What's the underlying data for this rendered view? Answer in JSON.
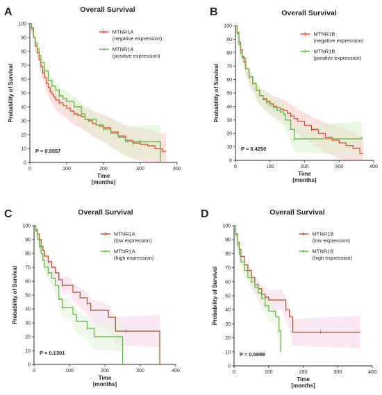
{
  "chart_data": [
    {
      "panel": "A",
      "type": "line",
      "title": "Overall Survival",
      "xlabel": [
        "Time",
        "[months]"
      ],
      "ylabel": "Probability of Survival",
      "xlim": [
        0,
        400
      ],
      "ylim": [
        0,
        100
      ],
      "xticks": [
        0,
        100,
        200,
        300,
        400
      ],
      "yticks": [
        0,
        10,
        20,
        30,
        40,
        50,
        60,
        70,
        80,
        90,
        100
      ],
      "legend_position": "top-right",
      "p_value": "P = 0.5557",
      "series": [
        {
          "name": "MTNR1A",
          "subtitle": "(negative expression)",
          "color": "#e8402a",
          "band_color": "#f9c9c9",
          "x": [
            0,
            5,
            10,
            15,
            20,
            25,
            30,
            35,
            40,
            45,
            50,
            55,
            60,
            65,
            70,
            80,
            90,
            100,
            110,
            120,
            130,
            140,
            150,
            160,
            170,
            180,
            190,
            200,
            220,
            240,
            260,
            280,
            300,
            320,
            340,
            360,
            370
          ],
          "y": [
            100,
            97,
            90,
            84,
            79,
            74,
            69,
            65,
            61,
            57,
            54,
            51,
            49,
            47,
            45,
            43,
            41,
            39,
            37,
            35,
            34,
            33,
            31,
            30,
            28,
            27,
            26,
            25,
            22,
            19,
            16,
            14,
            13,
            12,
            10,
            8,
            8
          ]
        },
        {
          "name": "MTNR1A",
          "subtitle": "(positive expression)",
          "color": "#5bb53a",
          "band_color": "#d9f0cc",
          "x": [
            0,
            5,
            10,
            15,
            20,
            25,
            30,
            40,
            50,
            60,
            70,
            80,
            90,
            100,
            120,
            140,
            150,
            160,
            180,
            200,
            220,
            240,
            260,
            300,
            340,
            355,
            355
          ],
          "y": [
            100,
            96,
            90,
            86,
            82,
            77,
            72,
            66,
            59,
            55,
            52,
            48,
            46,
            44,
            40,
            35,
            31,
            31,
            27,
            24,
            21,
            18,
            15,
            15,
            15,
            15,
            0
          ]
        }
      ]
    },
    {
      "panel": "B",
      "type": "line",
      "title": "Overall Survival",
      "xlabel": [
        "Time",
        "[months]"
      ],
      "ylabel": "Probability of Survival",
      "xlim": [
        0,
        400
      ],
      "ylim": [
        0,
        100
      ],
      "xticks": [
        0,
        100,
        200,
        300,
        400
      ],
      "yticks": [
        0,
        10,
        20,
        30,
        40,
        50,
        60,
        70,
        80,
        90,
        100
      ],
      "legend_position": "top-right",
      "p_value": "P = 0.4250",
      "series": [
        {
          "name": "MTNR1B",
          "subtitle": "(negative expression)",
          "color": "#e8402a",
          "band_color": "#f9c9c9",
          "x": [
            0,
            5,
            10,
            15,
            20,
            25,
            30,
            40,
            50,
            60,
            70,
            80,
            90,
            100,
            110,
            120,
            130,
            140,
            150,
            160,
            170,
            180,
            200,
            220,
            240,
            260,
            280,
            300,
            320,
            340,
            360,
            370
          ],
          "y": [
            100,
            95,
            88,
            82,
            77,
            73,
            68,
            62,
            57,
            52,
            48,
            46,
            44,
            42,
            40,
            39,
            38,
            37,
            35,
            33,
            31,
            29,
            26,
            23,
            20,
            17,
            15,
            13,
            11,
            9,
            5,
            5
          ]
        },
        {
          "name": "MTNR1B",
          "subtitle": "(positive expression)",
          "color": "#5bb53a",
          "band_color": "#d9f0cc",
          "x": [
            0,
            5,
            10,
            15,
            20,
            30,
            40,
            50,
            60,
            70,
            80,
            90,
            100,
            110,
            120,
            130,
            140,
            145,
            160,
            170,
            200,
            250,
            300,
            365
          ],
          "y": [
            100,
            94,
            86,
            80,
            76,
            68,
            62,
            57,
            52,
            48,
            45,
            43,
            41,
            39,
            37,
            36,
            34,
            30,
            23,
            16,
            16,
            16,
            16,
            17
          ]
        }
      ]
    },
    {
      "panel": "C",
      "type": "line",
      "title": "Overall Survival",
      "xlabel": [
        "Time",
        "[months]"
      ],
      "ylabel": "Probability of Survival",
      "xlim": [
        0,
        400
      ],
      "ylim": [
        0,
        100
      ],
      "xticks": [
        0,
        100,
        200,
        300,
        400
      ],
      "yticks": [
        0,
        10,
        20,
        30,
        40,
        50,
        60,
        70,
        80,
        90,
        100
      ],
      "legend_position": "top-right",
      "p_value": "P = 0.1301",
      "series": [
        {
          "name": "MTNR1A",
          "subtitle": "(low expression)",
          "color": "#a0522d",
          "band_color": "#f6d6e8",
          "x": [
            0,
            5,
            10,
            15,
            20,
            25,
            30,
            40,
            50,
            60,
            70,
            80,
            100,
            110,
            130,
            150,
            160,
            210,
            230,
            260,
            300,
            355,
            355
          ],
          "y": [
            100,
            97,
            94,
            90,
            85,
            82,
            78,
            74,
            70,
            66,
            61,
            57,
            57,
            52,
            48,
            44,
            39,
            34,
            24,
            24,
            24,
            24,
            0
          ]
        },
        {
          "name": "MTNR1A",
          "subtitle": "(high expression)",
          "color": "#5bb53a",
          "band_color": "#e4f3da",
          "x": [
            0,
            5,
            10,
            15,
            20,
            25,
            30,
            40,
            50,
            60,
            70,
            80,
            100,
            110,
            120,
            150,
            170,
            230,
            250,
            250
          ],
          "y": [
            100,
            96,
            90,
            85,
            80,
            75,
            70,
            66,
            62,
            57,
            47,
            41,
            41,
            36,
            31,
            26,
            20,
            20,
            20,
            0
          ]
        }
      ]
    },
    {
      "panel": "D",
      "type": "line",
      "title": "Overall Survival",
      "xlabel": [
        "Time",
        "[months]"
      ],
      "ylabel": "Probability of Survival",
      "xlim": [
        0,
        400
      ],
      "ylim": [
        0,
        100
      ],
      "xticks": [
        0,
        100,
        200,
        300,
        400
      ],
      "yticks": [
        0,
        10,
        20,
        30,
        40,
        50,
        60,
        70,
        80,
        90,
        100
      ],
      "legend_position": "top-right",
      "p_value": "P = 0.5898",
      "series": [
        {
          "name": "MTNR1B",
          "subtitle": "(low expression)",
          "color": "#a0522d",
          "band_color": "#f6d6e8",
          "x": [
            0,
            5,
            10,
            15,
            20,
            30,
            40,
            50,
            60,
            70,
            80,
            90,
            100,
            120,
            140,
            150,
            160,
            170,
            200,
            250,
            300,
            365
          ],
          "y": [
            100,
            94,
            88,
            83,
            78,
            72,
            68,
            63,
            58,
            55,
            51,
            49,
            47,
            47,
            47,
            40,
            35,
            24,
            24,
            24,
            24,
            24
          ]
        },
        {
          "name": "MTNR1B",
          "subtitle": "(high expression)",
          "color": "#5bb53a",
          "band_color": "#e4f3da",
          "x": [
            0,
            5,
            10,
            15,
            20,
            30,
            40,
            50,
            60,
            70,
            80,
            90,
            100,
            110,
            120,
            130,
            135
          ],
          "y": [
            100,
            93,
            86,
            80,
            74,
            68,
            63,
            60,
            56,
            52,
            48,
            43,
            39,
            39,
            35,
            25,
            10
          ]
        }
      ]
    }
  ]
}
